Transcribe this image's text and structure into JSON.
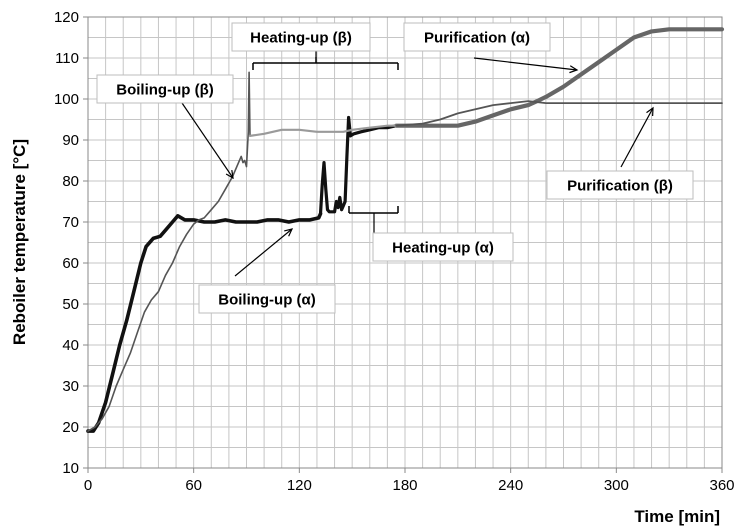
{
  "chart_data": {
    "type": "line",
    "xlabel": "Time [min]",
    "ylabel": "Reboiler temperature [°C]",
    "xlim": [
      0,
      360
    ],
    "ylim": [
      10,
      120
    ],
    "x_ticks": [
      0,
      60,
      120,
      180,
      240,
      300,
      360
    ],
    "x_tick_labels": [
      "0",
      "60",
      "120",
      "180",
      "240",
      "300",
      "360"
    ],
    "y_ticks": [
      10,
      20,
      30,
      40,
      50,
      60,
      70,
      80,
      90,
      100,
      110,
      120
    ],
    "y_tick_labels": [
      "10",
      "20",
      "30",
      "40",
      "50",
      "60",
      "70",
      "80",
      "90",
      "100",
      "110",
      "120"
    ],
    "grid": true,
    "colors": {
      "alpha": "#111111",
      "beta": "#555555",
      "beta_heating": "#9a9a9a",
      "alpha_purification": "#666666",
      "grid": "#c6c6c6"
    },
    "series": [
      {
        "key": "alpha-boiling-up",
        "points": [
          [
            0,
            19
          ],
          [
            3,
            19
          ],
          [
            6,
            21
          ],
          [
            10,
            26
          ],
          [
            14,
            33
          ],
          [
            18,
            40
          ],
          [
            22,
            46
          ],
          [
            26,
            53
          ],
          [
            30,
            60
          ],
          [
            33,
            64
          ],
          [
            37,
            66
          ],
          [
            41,
            66.5
          ],
          [
            44,
            68
          ],
          [
            48,
            70
          ],
          [
            51,
            71.5
          ],
          [
            55,
            70.5
          ],
          [
            60,
            70.5
          ],
          [
            66,
            70
          ],
          [
            72,
            70
          ],
          [
            78,
            70.5
          ],
          [
            84,
            70
          ],
          [
            90,
            70
          ],
          [
            96,
            70
          ],
          [
            102,
            70.5
          ],
          [
            108,
            70.5
          ],
          [
            114,
            70
          ],
          [
            120,
            70.5
          ],
          [
            126,
            70.5
          ],
          [
            131,
            71
          ],
          [
            132,
            72
          ]
        ]
      },
      {
        "key": "alpha-heating-up",
        "points": [
          [
            132,
            72
          ],
          [
            133,
            79
          ],
          [
            134,
            84.5
          ],
          [
            135,
            78
          ],
          [
            136,
            73
          ],
          [
            137,
            72.5
          ],
          [
            140,
            72.5
          ],
          [
            141,
            75
          ],
          [
            142,
            73.5
          ],
          [
            143,
            76
          ],
          [
            144,
            73
          ],
          [
            145,
            74
          ],
          [
            146,
            75
          ],
          [
            147,
            86
          ],
          [
            148,
            95.5
          ],
          [
            149,
            91
          ],
          [
            151,
            91.5
          ],
          [
            155,
            92
          ],
          [
            160,
            92.5
          ],
          [
            165,
            93
          ],
          [
            170,
            93
          ],
          [
            175,
            93.5
          ]
        ]
      },
      {
        "key": "alpha-purification",
        "points": [
          [
            175,
            93.5
          ],
          [
            190,
            93.5
          ],
          [
            200,
            93.5
          ],
          [
            210,
            93.5
          ],
          [
            220,
            94.5
          ],
          [
            230,
            96
          ],
          [
            240,
            97.5
          ],
          [
            250,
            98.5
          ],
          [
            255,
            99.5
          ],
          [
            260,
            100.5
          ],
          [
            270,
            103
          ],
          [
            280,
            106
          ],
          [
            290,
            109
          ],
          [
            300,
            112
          ],
          [
            310,
            115
          ],
          [
            320,
            116.5
          ],
          [
            330,
            117
          ],
          [
            345,
            117
          ],
          [
            360,
            117
          ]
        ]
      },
      {
        "key": "beta-boiling-up",
        "points": [
          [
            0,
            19
          ],
          [
            4,
            20
          ],
          [
            8,
            22
          ],
          [
            12,
            25
          ],
          [
            16,
            30
          ],
          [
            20,
            34
          ],
          [
            24,
            38
          ],
          [
            28,
            43
          ],
          [
            32,
            48
          ],
          [
            36,
            51
          ],
          [
            40,
            53
          ],
          [
            44,
            57
          ],
          [
            48,
            60
          ],
          [
            52,
            64
          ],
          [
            56,
            67
          ],
          [
            60,
            69.5
          ],
          [
            63,
            70.5
          ],
          [
            66,
            71
          ],
          [
            70,
            73
          ],
          [
            74,
            75
          ],
          [
            78,
            78
          ],
          [
            82,
            81
          ],
          [
            85,
            84
          ],
          [
            87,
            86
          ],
          [
            88,
            84.5
          ],
          [
            89,
            85
          ],
          [
            90,
            83.5
          ],
          [
            91,
            92
          ],
          [
            91.5,
            106.5
          ],
          [
            92,
            91
          ]
        ]
      },
      {
        "key": "beta-heating-up",
        "points": [
          [
            92,
            91
          ],
          [
            100,
            91.5
          ],
          [
            110,
            92.5
          ],
          [
            120,
            92.5
          ],
          [
            130,
            92
          ],
          [
            140,
            92
          ],
          [
            145,
            92
          ],
          [
            150,
            92.5
          ],
          [
            160,
            93
          ],
          [
            170,
            93.5
          ],
          [
            175,
            93.5
          ]
        ]
      },
      {
        "key": "beta-purification",
        "points": [
          [
            175,
            93.5
          ],
          [
            190,
            94
          ],
          [
            200,
            95
          ],
          [
            210,
            96.5
          ],
          [
            220,
            97.5
          ],
          [
            230,
            98.5
          ],
          [
            240,
            99
          ],
          [
            250,
            99.5
          ],
          [
            260,
            99
          ],
          [
            280,
            99
          ],
          [
            300,
            99
          ],
          [
            330,
            99
          ],
          [
            360,
            99
          ]
        ]
      }
    ],
    "annotations": [
      {
        "text": "Heating-up (β)"
      },
      {
        "text": "Purification (α)"
      },
      {
        "text": "Boiling-up (β)"
      },
      {
        "text": "Purification (β)"
      },
      {
        "text": "Heating-up (α)"
      },
      {
        "text": "Boiling-up (α)"
      }
    ]
  }
}
